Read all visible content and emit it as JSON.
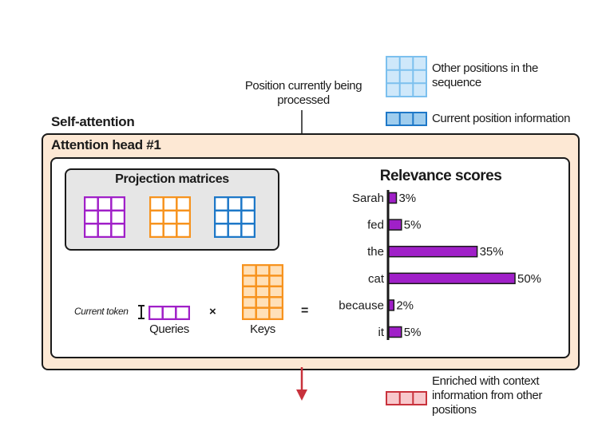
{
  "legend": {
    "other_positions": "Other positions in the sequence",
    "current_position": "Current position information",
    "enriched": "Enriched with context information from other positions"
  },
  "processing_label": "Position currently being processed",
  "self_attention_label": "Self-attention",
  "attention_head_label": "Attention head #1",
  "projection_matrices_label": "Projection matrices",
  "current_token_label": "Current token",
  "queries_label": "Queries",
  "keys_label": "Keys",
  "times_symbol": "×",
  "equals_symbol": "=",
  "colors": {
    "purple": "#a020c8",
    "orange": "#f7931e",
    "blue": "#1e78c8",
    "light_blue": "#7cc0ee",
    "red": "#c8323c",
    "head_bg": "#fde8d4"
  },
  "chart_data": {
    "type": "bar",
    "orientation": "horizontal",
    "title": "Relevance scores",
    "categories": [
      "Sarah",
      "fed",
      "the",
      "cat",
      "because",
      "it"
    ],
    "values": [
      3,
      5,
      35,
      50,
      2,
      5
    ],
    "value_labels": [
      "3%",
      "5%",
      "35%",
      "50%",
      "2%",
      "5%"
    ],
    "xlim": [
      0,
      50
    ],
    "grid": false
  }
}
